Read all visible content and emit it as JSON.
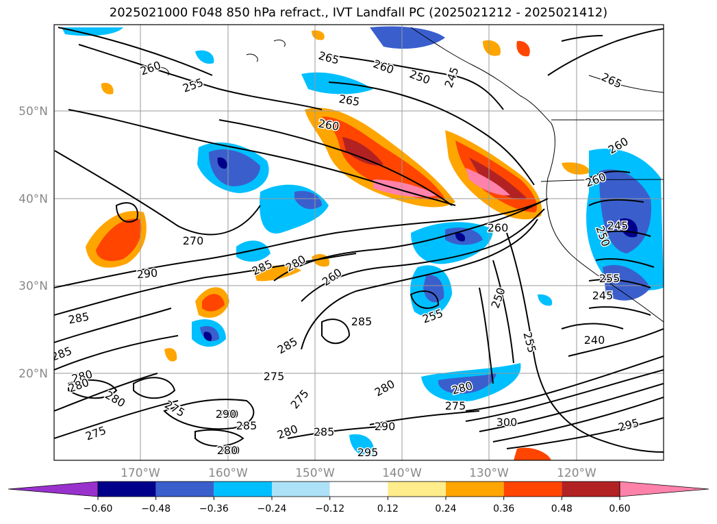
{
  "title": "2025021000 F048 850 hPa refract., IVT Landfall PC (2025021212 - 2025021412)",
  "lat_labels": [
    "50°N",
    "40°N",
    "30°N",
    "20°N"
  ],
  "lon_labels": [
    "170°W",
    "160°W",
    "150°W",
    "140°W",
    "130°W",
    "120°W"
  ],
  "colorbar": {
    "colors": [
      "#9932cc",
      "#00008b",
      "#3a5fcd",
      "#00bfff",
      "#ade1f8",
      "#ffffff",
      "#ffec8b",
      "#ffa500",
      "#ff4500",
      "#b22222",
      "#ff82ab"
    ],
    "ticks": [
      "−0.60",
      "−0.48",
      "−0.36",
      "−0.24",
      "−0.12",
      "0.12",
      "0.24",
      "0.36",
      "0.48",
      "0.60"
    ]
  },
  "contour_labels": [
    "260",
    "255",
    "265",
    "260",
    "250",
    "245",
    "265",
    "260",
    "265",
    "260",
    "260",
    "270",
    "290",
    "285",
    "285",
    "280",
    "280",
    "280",
    "280",
    "260",
    "285",
    "285",
    "285",
    "275",
    "275",
    "290",
    "285",
    "280",
    "285",
    "290",
    "280",
    "295",
    "275",
    "280",
    "280",
    "255",
    "250",
    "255",
    "240",
    "245",
    "250",
    "245",
    "255",
    "260",
    "300",
    "275",
    "295",
    "275",
    "290",
    "280"
  ]
}
